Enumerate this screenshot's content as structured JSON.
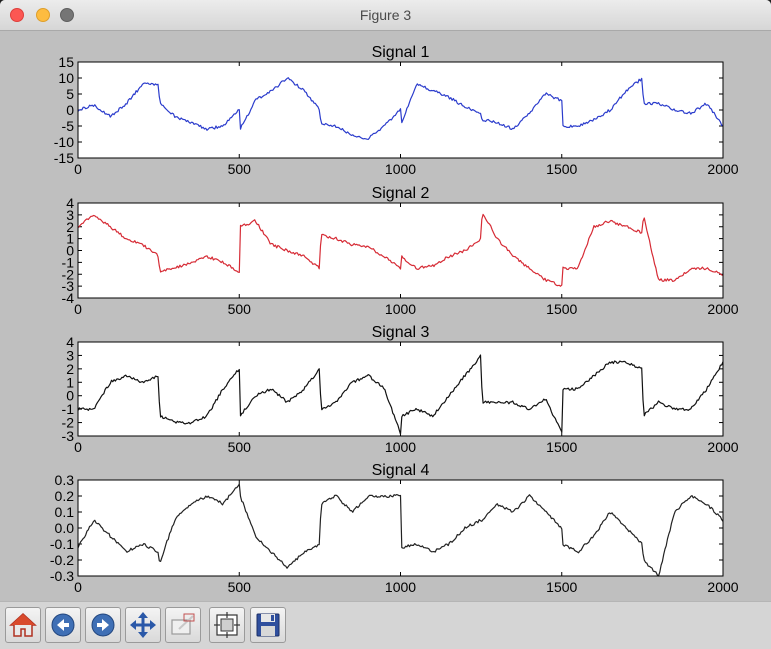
{
  "window": {
    "title": "Figure 3"
  },
  "toolbar": {
    "buttons": [
      {
        "name": "home-button",
        "icon": "home-icon"
      },
      {
        "name": "back-button",
        "icon": "back-arrow-icon"
      },
      {
        "name": "forward-button",
        "icon": "forward-arrow-icon"
      },
      {
        "name": "pan-button",
        "icon": "move-arrows-icon"
      },
      {
        "name": "zoom-button",
        "icon": "zoom-rectangle-icon"
      },
      {
        "name": "subplots-button",
        "icon": "subplots-config-icon"
      },
      {
        "name": "save-button",
        "icon": "floppy-disk-icon"
      }
    ]
  },
  "chart_data": [
    {
      "type": "line",
      "title": "Signal 1",
      "color": "#2b3ccc",
      "xlim": [
        0,
        2000
      ],
      "ylim": [
        -15,
        15
      ],
      "xticks": [
        "0",
        "500",
        "1000",
        "1500",
        "2000"
      ],
      "yticks": [
        "15",
        "10",
        "5",
        "0",
        "-5",
        "-10",
        "-15"
      ],
      "x": [
        0,
        50,
        100,
        150,
        200,
        250,
        253,
        300,
        350,
        400,
        450,
        500,
        503,
        550,
        600,
        650,
        700,
        750,
        753,
        800,
        850,
        900,
        950,
        1000,
        1003,
        1050,
        1100,
        1150,
        1200,
        1250,
        1253,
        1300,
        1350,
        1400,
        1450,
        1500,
        1503,
        1550,
        1600,
        1650,
        1700,
        1750,
        1753,
        1800,
        1850,
        1900,
        1950,
        2000
      ],
      "y": [
        0,
        1.5,
        -2,
        2,
        8,
        8,
        2,
        -2,
        -4,
        -6,
        -5,
        0,
        -6,
        3,
        6,
        10,
        6,
        0,
        -4,
        -5,
        -8,
        -9,
        -5,
        0,
        -4,
        8,
        6,
        4,
        1,
        -1,
        -3,
        -4,
        -6,
        -1,
        5,
        3,
        -5,
        -5,
        -3,
        0,
        6,
        10,
        2,
        2,
        0,
        -1,
        2,
        -5
      ]
    },
    {
      "type": "line",
      "title": "Signal 2",
      "color": "#d62b35",
      "xlim": [
        0,
        2000
      ],
      "ylim": [
        -4,
        4
      ],
      "xticks": [
        "0",
        "500",
        "1000",
        "1500",
        "2000"
      ],
      "yticks": [
        "4",
        "3",
        "2",
        "1",
        "0",
        "-1",
        "-2",
        "-3",
        "-4"
      ],
      "x": [
        0,
        50,
        100,
        150,
        200,
        250,
        253,
        300,
        350,
        400,
        450,
        500,
        503,
        550,
        600,
        650,
        700,
        750,
        753,
        800,
        850,
        900,
        950,
        1000,
        1003,
        1050,
        1100,
        1150,
        1200,
        1250,
        1253,
        1300,
        1350,
        1400,
        1450,
        1500,
        1503,
        1550,
        1600,
        1650,
        1700,
        1750,
        1753,
        1800,
        1850,
        1900,
        1950,
        2000
      ],
      "y": [
        2,
        3,
        2,
        1,
        0.5,
        -0.5,
        -1.7,
        -1.5,
        -1,
        -0.5,
        -1,
        -1.8,
        2,
        2.5,
        0.5,
        0,
        -0.5,
        -1.5,
        1.3,
        1,
        0.5,
        0.3,
        -0.5,
        -1.5,
        -0.5,
        -1.5,
        -1.3,
        -0.5,
        0,
        1,
        3.3,
        1,
        -0.5,
        -1.5,
        -2.5,
        -3,
        -1.5,
        -1.5,
        2,
        2.5,
        2,
        1.5,
        3,
        -2.5,
        -2.5,
        -1.5,
        -1.5,
        -2
      ]
    },
    {
      "type": "line",
      "title": "Signal 3",
      "color": "#111111",
      "xlim": [
        0,
        2000
      ],
      "ylim": [
        -3,
        4
      ],
      "xticks": [
        "0",
        "500",
        "1000",
        "1500",
        "2000"
      ],
      "yticks": [
        "4",
        "3",
        "2",
        "1",
        "0",
        "-1",
        "-2",
        "-3"
      ],
      "x": [
        0,
        50,
        100,
        150,
        200,
        250,
        253,
        300,
        350,
        400,
        450,
        500,
        503,
        550,
        600,
        650,
        700,
        750,
        753,
        800,
        850,
        900,
        950,
        1000,
        1003,
        1050,
        1100,
        1150,
        1200,
        1250,
        1253,
        1300,
        1350,
        1400,
        1450,
        1500,
        1503,
        1550,
        1600,
        1650,
        1700,
        1750,
        1753,
        1800,
        1850,
        1900,
        1950,
        2000
      ],
      "y": [
        -1,
        -1,
        1,
        1.5,
        1,
        1.5,
        -1.5,
        -2,
        -2,
        -1.5,
        0.5,
        2,
        -1.5,
        0,
        0.5,
        -0.5,
        0.5,
        2,
        -1,
        -0.5,
        1,
        1.5,
        0.5,
        -2.8,
        -1.5,
        -1,
        -1.5,
        0,
        1.5,
        3,
        -0.5,
        -0.5,
        -0.5,
        -1,
        -0.2,
        -2.8,
        0.5,
        0.5,
        1.5,
        2.5,
        2.5,
        2,
        -1.5,
        -0.5,
        -1,
        -1,
        0.5,
        2.5
      ]
    },
    {
      "type": "line",
      "title": "Signal 4",
      "color": "#222222",
      "xlim": [
        0,
        2000
      ],
      "ylim": [
        -0.3,
        0.3
      ],
      "xticks": [
        "0",
        "500",
        "1000",
        "1500",
        "2000"
      ],
      "yticks": [
        "0.3",
        "0.2",
        "0.1",
        "0.0",
        "-0.1",
        "-0.2",
        "-0.3"
      ],
      "x": [
        0,
        50,
        100,
        150,
        200,
        250,
        253,
        300,
        350,
        400,
        450,
        500,
        503,
        550,
        600,
        650,
        700,
        750,
        753,
        800,
        850,
        900,
        950,
        1000,
        1003,
        1050,
        1100,
        1150,
        1200,
        1250,
        1253,
        1300,
        1350,
        1400,
        1450,
        1500,
        1503,
        1550,
        1600,
        1650,
        1700,
        1750,
        1753,
        1800,
        1850,
        1900,
        1950,
        2000
      ],
      "y": [
        -0.12,
        0.05,
        -0.05,
        -0.15,
        -0.1,
        -0.15,
        -0.22,
        0.05,
        0.15,
        0.2,
        0.15,
        0.28,
        0.2,
        -0.05,
        -0.15,
        -0.25,
        -0.15,
        -0.1,
        0.15,
        0.2,
        0.1,
        0.2,
        0.2,
        0.2,
        -0.12,
        -0.1,
        -0.15,
        -0.1,
        0,
        0.05,
        0.05,
        0.15,
        0.1,
        0.2,
        0.1,
        0,
        -0.1,
        -0.15,
        -0.05,
        0.1,
        0,
        -0.1,
        -0.2,
        -0.3,
        0.1,
        0.2,
        0.15,
        0.05
      ]
    }
  ]
}
